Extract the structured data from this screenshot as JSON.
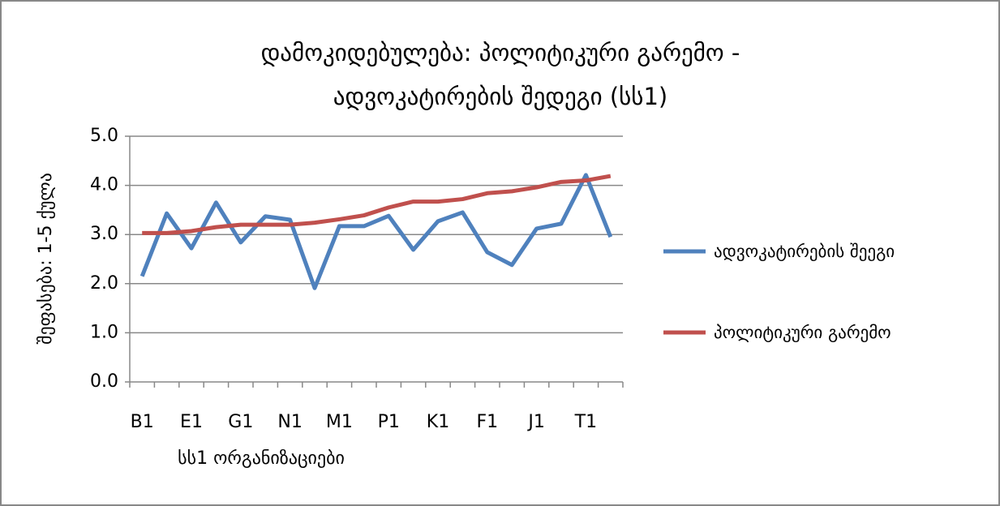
{
  "chart_data": {
    "type": "line",
    "title": "დამოკიდებულება: პოლიტიკური გარემო - ადვოკატირების შედეგი (სს1)",
    "x_label": "სს1 ორგანიზაციები",
    "y_label": "შეფასება: 1-5 ქულა",
    "categories": [
      "B1",
      null,
      "E1",
      null,
      "G1",
      null,
      "N1",
      null,
      "M1",
      null,
      "P1",
      null,
      "K1",
      null,
      "F1",
      null,
      "J1",
      null,
      "T1",
      null
    ],
    "series": [
      {
        "name": "ადვოკატირების შეეგი",
        "color": "#4f81bd",
        "values": [
          2.15,
          3.43,
          2.72,
          3.65,
          2.84,
          3.37,
          3.3,
          1.91,
          3.17,
          3.17,
          3.38,
          2.69,
          3.27,
          3.45,
          2.64,
          2.38,
          3.12,
          3.22,
          4.21,
          2.95
        ]
      },
      {
        "name": "პოლიტიკური გარემო",
        "color": "#c0504d",
        "values": [
          3.03,
          3.03,
          3.07,
          3.15,
          3.2,
          3.2,
          3.2,
          3.24,
          3.31,
          3.39,
          3.55,
          3.67,
          3.67,
          3.72,
          3.84,
          3.88,
          3.96,
          4.07,
          4.1,
          4.19
        ]
      }
    ],
    "ylim": [
      0,
      5
    ],
    "yticks": [
      {
        "value": 0,
        "label": "0.0"
      },
      {
        "value": 1,
        "label": "1.0"
      },
      {
        "value": 2,
        "label": "2.0"
      },
      {
        "value": 3,
        "label": "3.0"
      },
      {
        "value": 4,
        "label": "4.0"
      },
      {
        "value": 5,
        "label": "5.0"
      }
    ],
    "grid": true,
    "legend": "right"
  }
}
